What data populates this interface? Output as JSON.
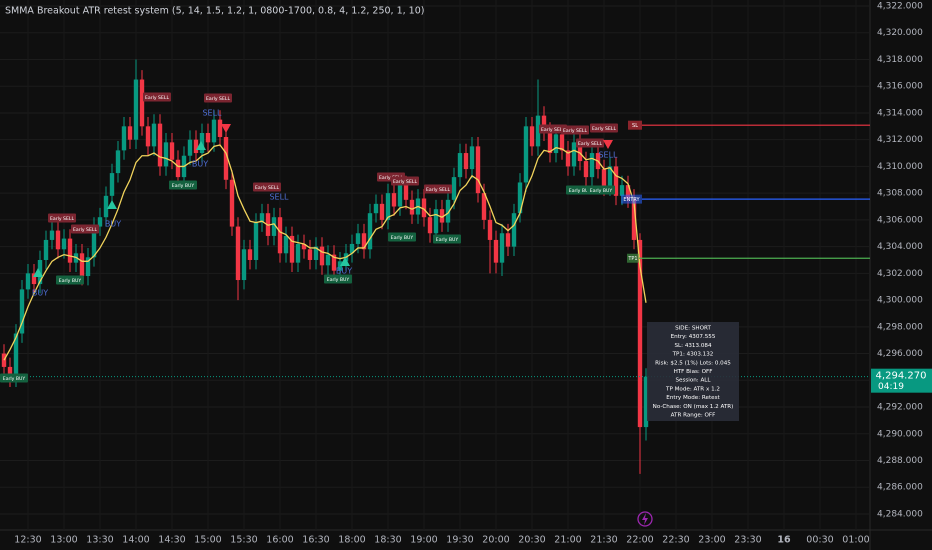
{
  "chart_data": {
    "type": "candlestick",
    "title": "SMMA Breakout ATR retest system (5, 14, 1.5, 1.2, 1, 0800-1700, 0.8, 4, 1.2, 250, 1, 10)",
    "categories": [
      null,
      null,
      null,
      null,
      "12:30",
      null,
      null,
      null,
      null,
      null,
      "13:00",
      null,
      null,
      null,
      null,
      null,
      "13:30",
      null,
      null,
      null,
      null,
      null,
      "14:00",
      null,
      null,
      null,
      null,
      null,
      "14:30",
      null,
      null,
      null,
      null,
      null,
      "15:00",
      null,
      null,
      null,
      null,
      null,
      "15:30",
      null,
      null,
      null,
      null,
      null,
      "16:00",
      null,
      null,
      null,
      null,
      null,
      "16:30",
      null,
      null,
      null,
      null,
      null,
      "18:00",
      null,
      null,
      null,
      null,
      null,
      "18:30",
      null,
      null,
      null,
      null,
      null,
      "19:00",
      null,
      null,
      null,
      null,
      null,
      "19:30",
      null,
      null,
      null,
      null,
      null,
      "20:00",
      null,
      null,
      null,
      null,
      null,
      "20:30",
      null,
      null,
      null,
      null,
      null,
      "21:00",
      null,
      null,
      null,
      null,
      null,
      "21:30",
      null,
      null,
      null,
      null,
      null,
      "22:00",
      null,
      null,
      null,
      null,
      null,
      "22:30",
      null,
      null,
      null,
      null,
      null,
      "23:00",
      null,
      null,
      null,
      null,
      null,
      "23:30",
      null,
      null,
      null,
      null,
      null,
      "16",
      null,
      null,
      null,
      null,
      null,
      "00:30",
      null,
      null,
      null,
      null,
      null,
      "01:00"
    ],
    "open": [
      4296.0,
      4295.0,
      4294.2,
      4297.5,
      4300.8,
      4302.0,
      4301.2,
      4303.0,
      4304.5,
      4305.2,
      4303.8,
      4304.6,
      4302.8,
      4303.5,
      4301.8,
      4303.2,
      4305.5,
      4306.2,
      4307.8,
      4309.5,
      4311.2,
      4313.0,
      4312.0,
      4316.5,
      4313.0,
      4311.5,
      4313.2,
      4310.0,
      4311.8,
      4310.5,
      4309.2,
      4310.8,
      4312.0,
      4311.0,
      4312.5,
      4311.8,
      4313.5,
      4312.2,
      4309.0,
      4305.5,
      4301.5,
      4303.8,
      4303.0,
      4305.8,
      4306.5,
      4304.8,
      4306.2,
      4303.5,
      4304.8,
      4302.8,
      4304.2,
      4303.8,
      4303.0,
      4304.0,
      4302.6,
      4303.4,
      4302.2,
      4302.9,
      4303.5,
      4304.2,
      4305.0,
      4303.8,
      4306.5,
      4307.2,
      4306.0,
      4308.0,
      4307.0,
      4308.6,
      4307.5,
      4306.4,
      4307.6,
      4306.2,
      4305.0,
      4306.8,
      4305.8,
      4307.5,
      4309.2,
      4311.0,
      4309.8,
      4311.5,
      4308.0,
      4306.0,
      4304.5,
      4302.8,
      4305.0,
      4304.0,
      4306.5,
      4308.8,
      4313.0,
      4311.5,
      4313.8,
      4312.6,
      4311.0,
      4312.4,
      4311.2,
      4310.0,
      4311.8,
      4310.4,
      4309.2,
      4311.0,
      4309.8,
      4308.5,
      4310.0,
      4307.8,
      4308.6,
      4307.6,
      4304.5,
      4290.5,
      null,
      null,
      null,
      null,
      null,
      null,
      null,
      null,
      null,
      null,
      null,
      null,
      null,
      null,
      null,
      null,
      null,
      null,
      null,
      null,
      null,
      null,
      null,
      null,
      null,
      null,
      null,
      null,
      null,
      null,
      null,
      null,
      null,
      null,
      null
    ],
    "high": [
      4296.7,
      4295.7,
      4298.2,
      4301.5,
      4302.7,
      4302.7,
      4303.7,
      4305.2,
      4305.9,
      4305.9,
      4305.3,
      4305.3,
      4304.2,
      4304.2,
      4303.9,
      4306.2,
      4306.9,
      4308.5,
      4310.2,
      4311.9,
      4313.7,
      4313.7,
      4318.0,
      4317.2,
      4313.7,
      4313.9,
      4313.9,
      4312.5,
      4312.5,
      4311.2,
      4311.5,
      4312.7,
      4312.7,
      4313.2,
      4313.2,
      4314.2,
      4314.2,
      4312.9,
      4309.7,
      4306.2,
      4304.5,
      4304.5,
      4306.5,
      4307.2,
      4307.2,
      4306.9,
      4306.9,
      4305.5,
      4305.5,
      4304.9,
      4304.9,
      4304.5,
      4304.7,
      4304.7,
      4304.1,
      4304.1,
      4303.6,
      4304.2,
      4304.9,
      4305.7,
      4305.7,
      4307.2,
      4307.9,
      4307.9,
      4308.7,
      4308.7,
      4309.3,
      4309.3,
      4308.2,
      4308.3,
      4308.3,
      4306.9,
      4307.5,
      4307.5,
      4308.2,
      4309.9,
      4311.7,
      4311.7,
      4312.2,
      4312.2,
      4308.7,
      4306.7,
      4305.2,
      4305.7,
      4305.7,
      4307.2,
      4309.5,
      4313.7,
      4313.7,
      4316.5,
      4314.5,
      4313.3,
      4313.1,
      4313.1,
      4311.9,
      4312.5,
      4312.5,
      4311.1,
      4311.7,
      4311.7,
      4310.5,
      4310.7,
      4310.7,
      4309.3,
      4309.3,
      4308.3,
      4305.0,
      4294.9,
      null,
      null,
      null,
      null,
      null,
      null,
      null,
      null,
      null,
      null,
      null,
      null,
      null,
      null,
      null,
      null,
      null,
      null,
      null,
      null,
      null,
      null,
      null,
      null,
      null,
      null,
      null,
      null,
      null,
      null,
      null,
      null,
      null,
      null,
      null
    ],
    "low": [
      4294.3,
      4293.5,
      4293.5,
      4296.8,
      4300.1,
      4300.5,
      4300.5,
      4302.3,
      4303.8,
      4303.1,
      4303.1,
      4302.1,
      4302.1,
      4301.1,
      4301.1,
      4302.5,
      4304.8,
      4305.5,
      4307.1,
      4308.8,
      4310.5,
      4311.3,
      4311.3,
      4312.3,
      4310.8,
      4310.8,
      4309.3,
      4309.3,
      4309.8,
      4308.5,
      4308.5,
      4310.1,
      4310.3,
      4310.3,
      4311.1,
      4311.1,
      4311.5,
      4308.3,
      4304.8,
      4300.0,
      4300.8,
      4302.3,
      4302.3,
      4305.1,
      4304.1,
      4304.1,
      4302.8,
      4302.8,
      4302.1,
      4302.1,
      4303.1,
      4302.3,
      4302.3,
      4301.9,
      4301.9,
      4301.5,
      4301.5,
      4302.2,
      4302.8,
      4303.5,
      4303.1,
      4303.1,
      4305.8,
      4305.3,
      4305.3,
      4306.3,
      4306.3,
      4306.8,
      4305.7,
      4305.7,
      4305.5,
      4304.3,
      4304.3,
      4305.1,
      4305.1,
      4306.8,
      4308.5,
      4309.1,
      4309.1,
      4307.3,
      4305.3,
      4302.0,
      4302.0,
      4301.8,
      4303.3,
      4303.3,
      4305.8,
      4308.1,
      4310.8,
      4310.8,
      4311.9,
      4310.3,
      4310.3,
      4310.5,
      4309.3,
      4309.3,
      4309.7,
      4308.5,
      4308.5,
      4309.1,
      4307.8,
      4307.8,
      4307.1,
      4307.1,
      4306.9,
      4303.8,
      4287.0,
      4289.5,
      null,
      null,
      null,
      null,
      null,
      null,
      null,
      null,
      null,
      null,
      null,
      null,
      null,
      null,
      null,
      null,
      null,
      null,
      null,
      null,
      null,
      null,
      null,
      null,
      null,
      null,
      null,
      null,
      null,
      null,
      null,
      null,
      null,
      null,
      null
    ],
    "close": [
      4295.0,
      4294.2,
      4297.5,
      4300.8,
      4302.0,
      4301.2,
      4303.0,
      4304.5,
      4305.2,
      4303.8,
      4304.6,
      4302.8,
      4303.5,
      4301.8,
      4303.2,
      4305.5,
      4306.2,
      4307.8,
      4309.5,
      4311.2,
      4313.0,
      4312.0,
      4316.5,
      4313.0,
      4311.5,
      4313.2,
      4310.0,
      4311.8,
      4310.5,
      4309.2,
      4310.8,
      4312.0,
      4311.0,
      4312.5,
      4311.8,
      4313.5,
      4312.2,
      4309.0,
      4305.5,
      4301.5,
      4303.8,
      4303.0,
      4305.8,
      4306.5,
      4304.8,
      4306.2,
      4303.5,
      4304.8,
      4302.8,
      4304.2,
      4303.8,
      4303.0,
      4304.0,
      4302.6,
      4303.4,
      4302.2,
      4302.9,
      4303.5,
      4304.2,
      4305.0,
      4303.8,
      4306.5,
      4307.2,
      4306.0,
      4308.0,
      4307.0,
      4308.6,
      4307.5,
      4306.4,
      4307.6,
      4306.2,
      4305.0,
      4306.8,
      4305.8,
      4307.5,
      4309.2,
      4311.0,
      4309.8,
      4311.5,
      4308.0,
      4306.0,
      4304.5,
      4302.8,
      4305.0,
      4304.0,
      4306.5,
      4308.8,
      4313.0,
      4311.5,
      4313.8,
      4312.6,
      4311.0,
      4312.4,
      4311.2,
      4310.0,
      4311.8,
      4310.4,
      4309.2,
      4311.0,
      4309.8,
      4308.5,
      4310.0,
      4307.8,
      4308.6,
      4307.6,
      4304.5,
      4290.5,
      4294.27,
      null,
      null,
      null,
      null,
      null,
      null,
      null,
      null,
      null,
      null,
      null,
      null,
      null,
      null,
      null,
      null,
      null,
      null,
      null,
      null,
      null,
      null,
      null,
      null,
      null,
      null,
      null,
      null,
      null,
      null,
      null,
      null,
      null,
      null,
      null
    ],
    "up_color": "#089981",
    "down_color": "#f23645",
    "series": [
      {
        "color": "#f2d45c",
        "values": [
          4295.5,
          4296.3,
          4297.2,
          4298.3,
          4299.5,
          4300.5,
          4301.4,
          4302.2,
          4302.9,
          4303.2,
          4303.4,
          4303.3,
          4303.2,
          4302.9,
          4302.9,
          4303.3,
          4303.9,
          4304.7,
          4305.7,
          4306.8,
          4308.1,
          4309.0,
          4310.3,
          4310.8,
          4310.8,
          4311.0,
          4310.7,
          4310.6,
          4310.4,
          4310.0,
          4310.0,
          4310.3,
          4310.4,
          4310.8,
          4311.0,
          4311.5,
          4311.6,
          4311.0,
          4309.6,
          4307.8,
          4306.8,
          4305.9,
          4305.8,
          4305.9,
          4305.6,
          4305.7,
          4305.1,
          4304.9,
          4304.4,
          4304.3,
          4304.2,
          4303.9,
          4303.9,
          4303.6,
          4303.5,
          4303.2,
          4303.1,
          4303.2,
          4303.5,
          4303.9,
          4303.9,
          4304.6,
          4305.3,
          4305.5,
          4306.2,
          4306.4,
          4306.9,
          4307.0,
          4306.8,
          4307.0,
          4306.8,
          4306.3,
          4306.4,
          4306.2,
          4306.5,
          4307.2,
          4308.2,
          4308.6,
          4309.3,
          4309.0,
          4308.1,
          4307.0,
          4305.8,
          4305.6,
          4305.2,
          4305.6,
          4306.5,
          4308.3,
          4309.3,
          4310.6,
          4311.2,
          4311.1,
          4311.4,
          4311.3,
          4311.0,
          4311.2,
          4311.0,
          4310.5,
          4310.6,
          4310.4,
          4309.8,
          4309.9,
          4309.3,
          4309.1,
          4308.7,
          4307.3,
          4302.5,
          4299.8,
          null,
          null,
          null,
          null,
          null,
          null,
          null,
          null,
          null,
          null,
          null,
          null,
          null,
          null,
          null,
          null,
          null,
          null,
          null,
          null,
          null,
          null,
          null,
          null,
          null,
          null,
          null,
          null,
          null,
          null,
          null,
          null,
          null,
          null,
          null
        ]
      }
    ],
    "ylim": [
      4282.8,
      4322.45
    ],
    "yticks": [
      {
        "value": 4284,
        "label": "4,284.000"
      },
      {
        "value": 4286,
        "label": "4,286.000"
      },
      {
        "value": 4288,
        "label": "4,288.000"
      },
      {
        "value": 4290,
        "label": "4,290.000"
      },
      {
        "value": 4292,
        "label": "4,292.000"
      },
      {
        "value": 4294,
        "label": "4,294.000"
      },
      {
        "value": 4296,
        "label": "4,296.000"
      },
      {
        "value": 4298,
        "label": "4,298.000"
      },
      {
        "value": 4300,
        "label": "4,300.000"
      },
      {
        "value": 4302,
        "label": "4,302.000"
      },
      {
        "value": 4304,
        "label": "4,304.000"
      },
      {
        "value": 4306,
        "label": "4,306.000"
      },
      {
        "value": 4308,
        "label": "4,308.000"
      },
      {
        "value": 4310,
        "label": "4,310.000"
      },
      {
        "value": 4312,
        "label": "4,312.000"
      },
      {
        "value": 4314,
        "label": "4,314.000"
      },
      {
        "value": 4316,
        "label": "4,316.000"
      },
      {
        "value": 4318,
        "label": "4,318.000"
      },
      {
        "value": 4320,
        "label": "4,320.000"
      },
      {
        "value": 4322,
        "label": "4,322.000"
      }
    ],
    "grid": true,
    "levels": [
      {
        "label": "SL",
        "value": 4313.084,
        "color": "#f23645"
      },
      {
        "label": "ENTRY",
        "value": 4307.555,
        "color": "#2962ff"
      },
      {
        "label": "TP1",
        "value": 4303.132,
        "color": "#4caf50"
      }
    ],
    "last_price": {
      "value": 4294.27,
      "label": "4,294.270",
      "color": "#089981"
    },
    "countdown": "04:19",
    "signal_labels": [
      "Early SELL",
      "Early SELL",
      "Early SELL",
      "Early SELL",
      "Early BUY",
      "Early BUY",
      "Early SELL",
      "Early SELL",
      "Early SELL",
      "Early SELL",
      "Early BUY",
      "Early BUY",
      "Early BUY",
      "Early SELL",
      "Early SELL",
      "Early SELL",
      "Early SELL",
      "Early BUY",
      "Early BUY",
      "Early BUY"
    ],
    "signal_words": [
      "SELL",
      "SELL",
      "SELL",
      "BUY",
      "BUY",
      "BUY",
      "BUY"
    ],
    "info_box": [
      "SIDE: SHORT",
      "Entry: 4307.555",
      "SL: 4313.084",
      "TP1: 4303.132",
      "Risk: $2.5 (1%)  Lots: 0.045",
      "HTF Bias: OFF",
      "Session: ALL",
      "TP Mode: ATR x 1.2",
      "Entry Mode: Retest",
      "No-Chase: ON (max 1.2 ATR)",
      "ATR Range: OFF"
    ]
  }
}
